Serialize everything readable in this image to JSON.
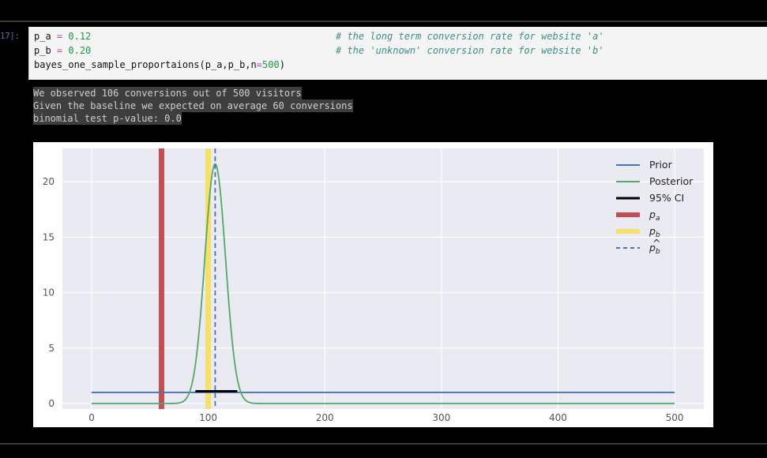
{
  "cell": {
    "prompt": "17]:",
    "line1": {
      "code": "p_a ",
      "op": "=",
      "value": "0.12",
      "comment": "# the long term conversion rate for website 'a'"
    },
    "line2": {
      "code": "p_b ",
      "op": "=",
      "value": "0.20",
      "comment": "# the 'unknown' conversion rate for website 'b'"
    },
    "line3": {
      "code": "bayes_one_sample_proportaions(p_a,p_b,n",
      "op": "=",
      "value": "500",
      "close": ")"
    }
  },
  "output": {
    "lines": [
      "We observed 106 conversions out of 500 visitors",
      "Given the baseline we expected on average 60 conversions",
      "binomial test p-value: 0.0"
    ]
  },
  "colors": {
    "prior": "#4c72b0",
    "posterior": "#55a868",
    "ci": "#000000",
    "p_a": "#c44e52",
    "p_b": "#f5e169",
    "p_b_hat": "#4c72b0",
    "plot_bg": "#eaeaf2"
  },
  "chart_data": {
    "type": "line",
    "xlim": [
      -25,
      525
    ],
    "ylim": [
      -0.5,
      23
    ],
    "xticks": [
      "0",
      "100",
      "200",
      "300",
      "400",
      "500"
    ],
    "yticks": [
      "0",
      "5",
      "10",
      "15",
      "20"
    ],
    "grid": true,
    "legend_position": "top-right",
    "series": [
      {
        "name": "Prior",
        "type": "line",
        "x": [
          0,
          500
        ],
        "y": [
          1,
          1
        ]
      },
      {
        "name": "Posterior",
        "type": "curve",
        "mean": 106,
        "sd": 8.9,
        "peak": 21.6,
        "x_range": [
          0,
          500
        ]
      },
      {
        "name": "95% CI",
        "type": "segment",
        "x": [
          89,
          125
        ],
        "y": 1.1
      },
      {
        "name": "p_a",
        "label_main": "p",
        "label_sub": "a",
        "type": "vline",
        "x": 60
      },
      {
        "name": "p_b",
        "label_main": "p",
        "label_sub": "b",
        "type": "vline",
        "x": 100
      },
      {
        "name": "p_b_hat",
        "label_main": "p",
        "label_sub": "b",
        "type": "vline-dashed",
        "x": 106
      }
    ]
  }
}
